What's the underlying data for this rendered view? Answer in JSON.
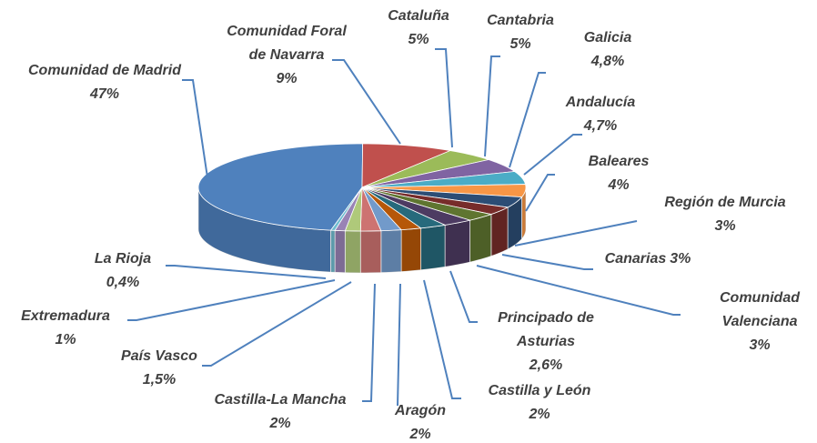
{
  "chart_data": {
    "type": "pie3d",
    "categories": [
      "Comunidad de Madrid",
      "Comunidad Foral de Navarra",
      "Cataluña",
      "Cantabria",
      "Galicia",
      "Andalucía",
      "Baleares",
      "Región de Murcia",
      "Canarias",
      "Comunidad Valenciana",
      "Principado de Asturias",
      "Castilla y León",
      "Aragón",
      "Castilla-La Mancha",
      "País Vasco",
      "Extremadura",
      "La Rioja"
    ],
    "values": [
      47,
      9,
      5,
      5,
      4.8,
      4.7,
      4,
      3,
      3,
      3,
      2.6,
      2,
      2,
      2,
      1.5,
      1,
      0.4
    ],
    "value_labels": [
      "47%",
      "9%",
      "5%",
      "5%",
      "4,8%",
      "4,7%",
      "4%",
      "3%",
      "3%",
      "3%",
      "2,6%",
      "2%",
      "2%",
      "2%",
      "1,5%",
      "1%",
      "0,4%"
    ],
    "colors": [
      "#4F81BD",
      "#C0504D",
      "#9BBB59",
      "#8064A2",
      "#4BACC6",
      "#F79646",
      "#2C4D75",
      "#772C2A",
      "#5F7530",
      "#4D3B62",
      "#276A7C",
      "#B65708",
      "#729ACA",
      "#CD7371",
      "#AFC97A",
      "#9983B5",
      "#6FBDD1"
    ]
  }
}
